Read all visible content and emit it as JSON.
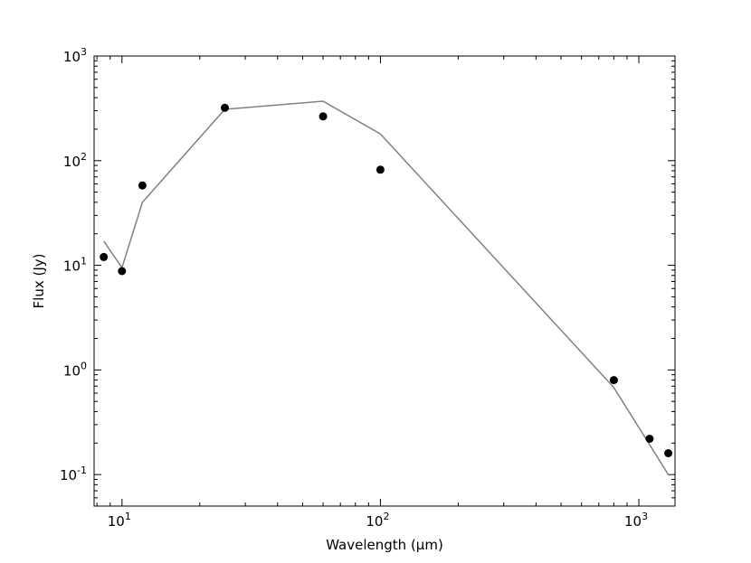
{
  "chart_data": {
    "type": "scatter",
    "title": "",
    "xlabel": "Wavelength (μm)",
    "ylabel": "Flux (Jy)",
    "x_scale": "log",
    "y_scale": "log",
    "xlim": [
      7.8,
      1380
    ],
    "ylim": [
      0.05,
      1000
    ],
    "grid": false,
    "x_major_ticks": [
      {
        "value": 10,
        "base": "10",
        "exp": "1"
      },
      {
        "value": 100,
        "base": "10",
        "exp": "2"
      },
      {
        "value": 1000,
        "base": "10",
        "exp": "3"
      }
    ],
    "y_major_ticks": [
      {
        "value": 0.1,
        "base": "10",
        "exp": "-1"
      },
      {
        "value": 1,
        "base": "10",
        "exp": "0"
      },
      {
        "value": 10,
        "base": "10",
        "exp": "1"
      },
      {
        "value": 100,
        "base": "10",
        "exp": "2"
      },
      {
        "value": 1000,
        "base": "10",
        "exp": "3"
      }
    ],
    "series": [
      {
        "kind": "points",
        "color": "#000000",
        "x": [
          8.5,
          10,
          12,
          25,
          60,
          100,
          800,
          1100,
          1300
        ],
        "y": [
          12.0,
          8.8,
          58,
          320,
          265,
          82,
          0.8,
          0.22,
          0.16
        ]
      },
      {
        "kind": "line",
        "color": "#808080",
        "x": [
          8.5,
          10,
          12,
          25,
          60,
          100,
          800,
          1300
        ],
        "y": [
          17,
          9.5,
          40,
          310,
          370,
          180,
          0.68,
          0.1
        ]
      }
    ]
  }
}
